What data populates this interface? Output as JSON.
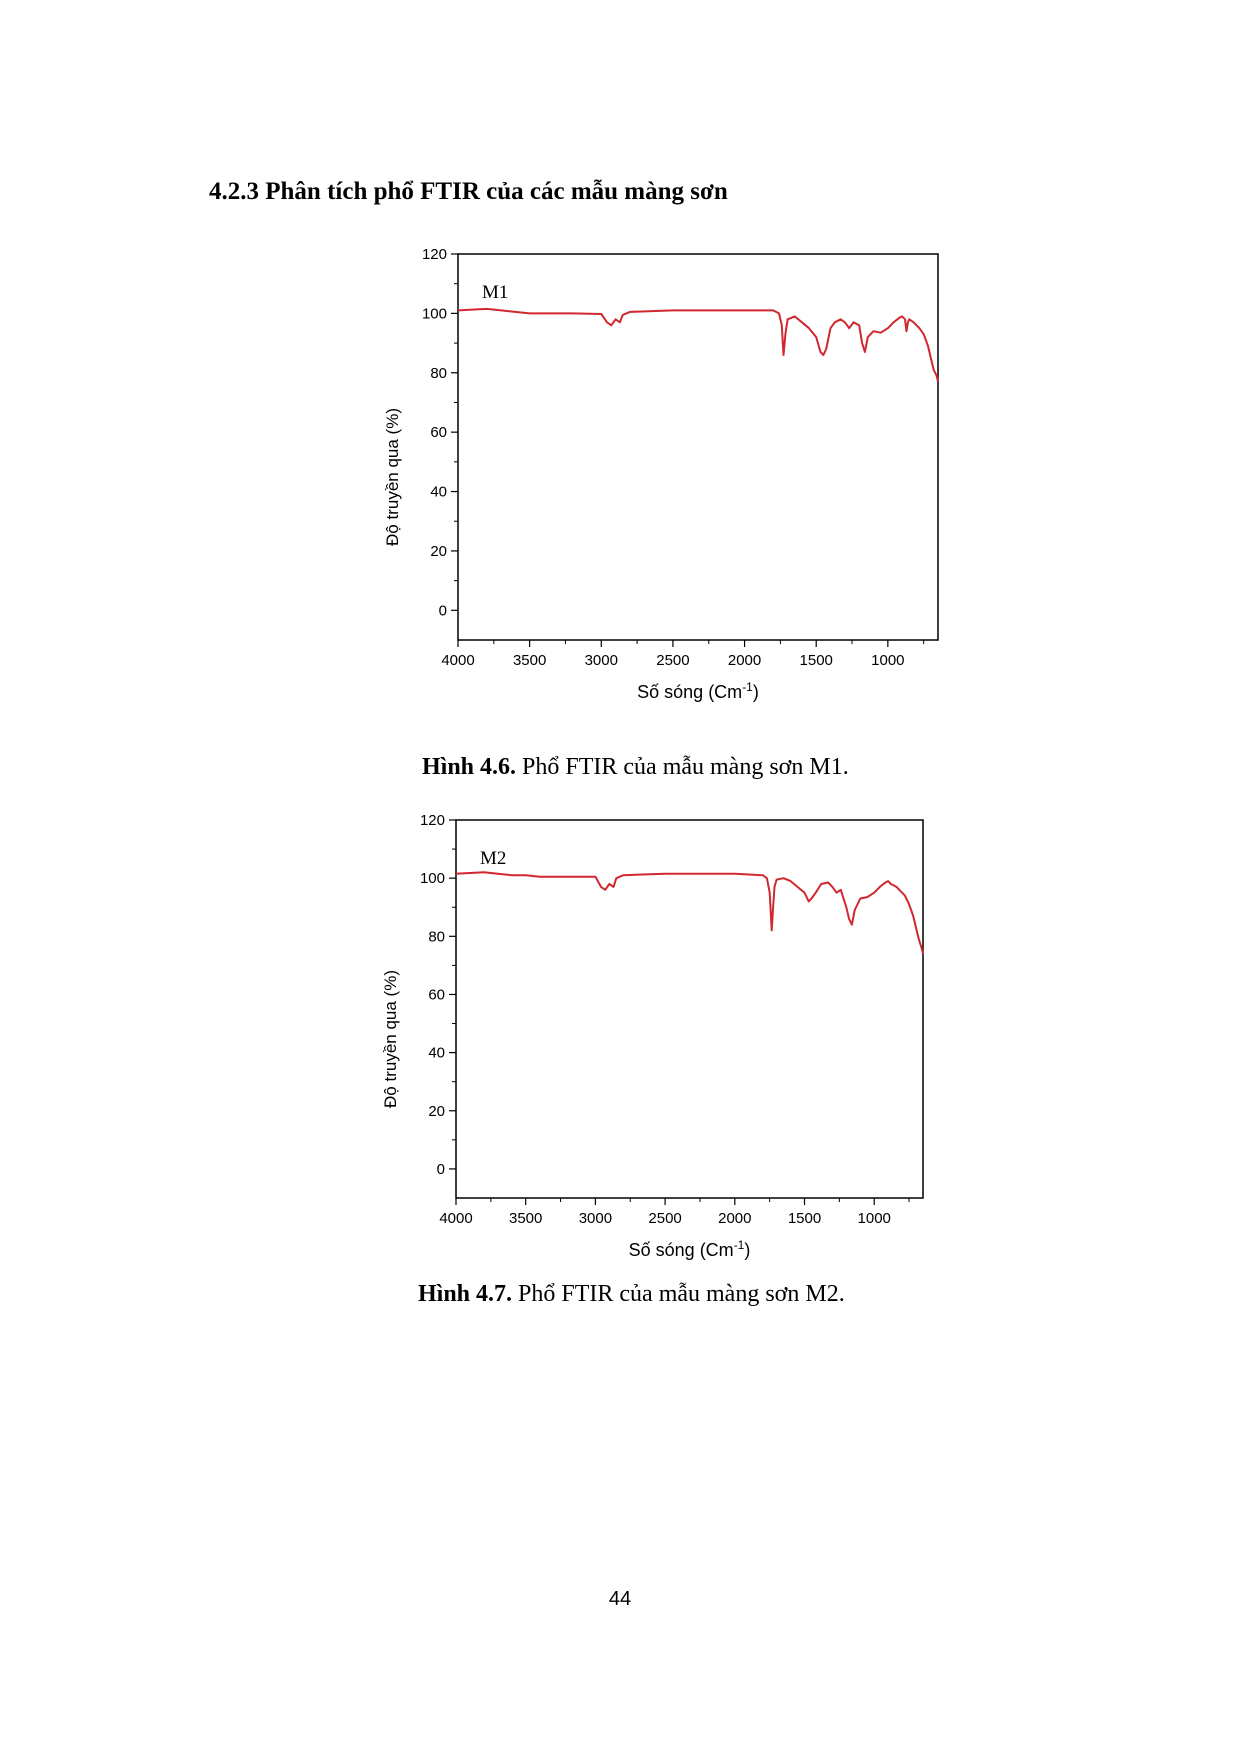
{
  "heading": "4.2.3 Phân tích phổ FTIR của các mẫu màng sơn",
  "figures": [
    {
      "caption_label": "Hình 4.6.",
      "caption_text": " Phổ FTIR của mẫu màng sơn M1."
    },
    {
      "caption_label": "Hình 4.7.",
      "caption_text": "  Phổ FTIR của mẫu màng sơn M2."
    }
  ],
  "page_number": "44",
  "chart_data": [
    {
      "type": "line",
      "annotation": "M1",
      "xlabel": "Số sóng (Cm",
      "xlabel_sup": "-1",
      "xlabel_end": ")",
      "ylabel": "Độ truyền qua (%)",
      "xlim": [
        4000,
        650
      ],
      "ylim": [
        -10,
        120
      ],
      "x_reversed": true,
      "xticks": [
        4000,
        3500,
        3000,
        2500,
        2000,
        1500,
        1000
      ],
      "yticks": [
        0,
        20,
        40,
        60,
        80,
        100,
        120
      ],
      "grid": false,
      "line_color": "#d0282e",
      "series": [
        {
          "x": [
            4000,
            3800,
            3700,
            3600,
            3500,
            3400,
            3200,
            3000,
            2960,
            2930,
            2900,
            2870,
            2850,
            2800,
            2500,
            2000,
            1800,
            1760,
            1740,
            1728,
            1715,
            1700,
            1650,
            1600,
            1550,
            1500,
            1470,
            1450,
            1430,
            1400,
            1370,
            1330,
            1300,
            1270,
            1240,
            1200,
            1180,
            1160,
            1140,
            1100,
            1050,
            1000,
            960,
            920,
            900,
            880,
            870,
            860,
            850,
            820,
            780,
            750,
            720,
            700,
            680,
            660,
            650
          ],
          "y": [
            101,
            101.5,
            101,
            100.5,
            100,
            100,
            100,
            99.8,
            97,
            96,
            98,
            97,
            99.5,
            100.5,
            101,
            101,
            101,
            100,
            96,
            86,
            93,
            98,
            99,
            97,
            95,
            92,
            87,
            86,
            88,
            95,
            97,
            98,
            97,
            95,
            97,
            96,
            90,
            87,
            92,
            94,
            93.5,
            95,
            97,
            98.5,
            99,
            98,
            94,
            97,
            98,
            97,
            95,
            93,
            89,
            85,
            81,
            79,
            77
          ]
        }
      ]
    },
    {
      "type": "line",
      "annotation": "M2",
      "xlabel": "Số sóng (Cm",
      "xlabel_sup": "-1",
      "xlabel_end": ")",
      "ylabel": "Độ truyền qua (%)",
      "xlim": [
        4000,
        650
      ],
      "ylim": [
        -10,
        120
      ],
      "x_reversed": true,
      "xticks": [
        4000,
        3500,
        3000,
        2500,
        2000,
        1500,
        1000
      ],
      "yticks": [
        0,
        20,
        40,
        60,
        80,
        100,
        120
      ],
      "grid": false,
      "line_color": "#d0282e",
      "series": [
        {
          "x": [
            4000,
            3800,
            3700,
            3600,
            3500,
            3400,
            3200,
            3000,
            2960,
            2930,
            2900,
            2870,
            2850,
            2800,
            2500,
            2000,
            1800,
            1770,
            1750,
            1735,
            1725,
            1715,
            1700,
            1650,
            1600,
            1550,
            1500,
            1470,
            1450,
            1420,
            1380,
            1330,
            1300,
            1270,
            1240,
            1200,
            1180,
            1160,
            1140,
            1100,
            1050,
            1000,
            960,
            920,
            900,
            880,
            860,
            840,
            820,
            780,
            750,
            720,
            700,
            680,
            660,
            650
          ],
          "y": [
            101.5,
            102,
            101.5,
            101,
            101,
            100.5,
            100.5,
            100.5,
            97,
            96,
            98,
            97,
            100,
            101,
            101.5,
            101.5,
            101,
            100,
            95,
            82,
            90,
            97,
            99.5,
            100,
            99,
            97,
            95,
            92,
            93,
            95,
            98,
            98.5,
            97,
            95,
            96,
            90,
            86,
            84,
            89,
            93,
            93.5,
            95,
            97,
            98.5,
            99,
            98,
            97.5,
            97,
            96,
            94,
            91,
            87,
            83,
            79,
            76,
            74
          ]
        }
      ]
    }
  ]
}
